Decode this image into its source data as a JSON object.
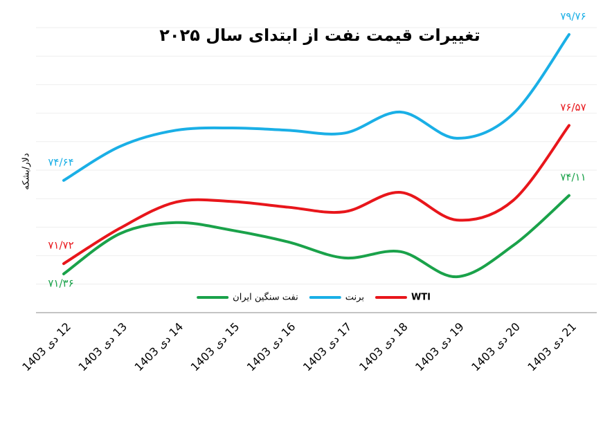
{
  "chart_data": {
    "type": "line",
    "title": "تغییرات قیمت نفت از ابتدای سال ۲۰۲۵",
    "y_label": "دلار/بشکه",
    "categories": [
      "12 دی 1403",
      "13 دی 1403",
      "14 دی 1403",
      "15 دی 1403",
      "16 دی 1403",
      "17 دی 1403",
      "18 دی 1403",
      "19 دی 1403",
      "20 دی 1403",
      "21 دی 1403"
    ],
    "series": [
      {
        "name": "WTI",
        "color": "#e8161b",
        "values": [
          71.72,
          72.96,
          73.88,
          73.9,
          73.7,
          73.54,
          74.22,
          73.25,
          73.93,
          76.57
        ],
        "value_labels": [
          "۷۱/۷۲",
          null,
          null,
          null,
          null,
          null,
          null,
          null,
          null,
          "۷۶/۵۷"
        ]
      },
      {
        "name": "برنت",
        "color": "#1aafe6",
        "values": [
          74.64,
          75.83,
          76.4,
          76.48,
          76.4,
          76.3,
          77.04,
          76.12,
          76.97,
          79.76
        ],
        "value_labels": [
          "۷۴/۶۴",
          null,
          null,
          null,
          null,
          null,
          null,
          null,
          null,
          "۷۹/۷۶"
        ]
      },
      {
        "name": "نفت سنگین ایران",
        "color": "#1aa24a",
        "values": [
          71.36,
          72.77,
          73.16,
          72.89,
          72.48,
          71.92,
          72.14,
          71.26,
          72.35,
          74.11
        ],
        "value_labels": [
          "۷۱/۳۶",
          null,
          null,
          null,
          null,
          null,
          null,
          null,
          null,
          "۷۴/۱۱"
        ]
      }
    ],
    "ylim": [
      70,
      80
    ],
    "yticks": [
      70,
      71,
      72,
      73,
      74,
      75,
      76,
      77,
      78,
      79,
      80
    ],
    "grid": true
  }
}
